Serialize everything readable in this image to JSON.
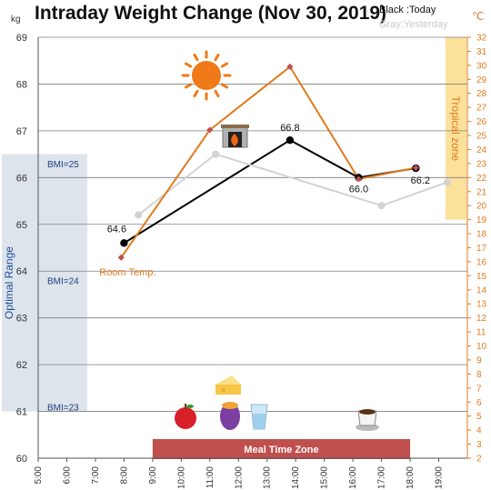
{
  "chart_data": {
    "type": "line",
    "title": "Intraday Weight Change (Nov 30, 2019)",
    "legend": {
      "today": "Black :Today",
      "yesterday": "Gray:Yesterday"
    },
    "y_unit": "kg",
    "y2_unit": "℃",
    "ylim": [
      60,
      69
    ],
    "y2lim": [
      2,
      32
    ],
    "y_ticks": [
      "60",
      "61",
      "62",
      "63",
      "64",
      "65",
      "66",
      "67",
      "68",
      "69"
    ],
    "y2_ticks": [
      "2",
      "3",
      "4",
      "5",
      "6",
      "7",
      "8",
      "9",
      "10",
      "11",
      "12",
      "13",
      "14",
      "15",
      "16",
      "17",
      "18",
      "19",
      "20",
      "21",
      "22",
      "23",
      "24",
      "25",
      "26",
      "27",
      "28",
      "29",
      "30",
      "31",
      "32"
    ],
    "x_ticks": [
      "5:00",
      "6:00",
      "7:00",
      "8:00",
      "9:00",
      "10:00",
      "11:00",
      "12:00",
      "13:00",
      "14:00",
      "15:00",
      "16:00",
      "17:00",
      "18:00",
      "19:00"
    ],
    "grid": true,
    "series": [
      {
        "name": "Black :Today",
        "color": "#000000",
        "x": [
          8.0,
          13.8,
          16.2,
          18.2
        ],
        "y": [
          64.6,
          66.8,
          66.0,
          66.2
        ],
        "labels": [
          "64.6",
          "66.8",
          "66.0",
          "66.2"
        ]
      },
      {
        "name": "Gray:Yesterday",
        "color": "#d3d3d3",
        "x": [
          8.5,
          11.2,
          17.0,
          19.3
        ],
        "y": [
          65.2,
          66.5,
          65.4,
          65.9
        ]
      },
      {
        "name": "Room Temp.",
        "color": "#e07b20",
        "axis": "right",
        "x": [
          7.9,
          11.0,
          13.8,
          16.2,
          18.2
        ],
        "y": [
          16.3,
          25.4,
          29.9,
          21.9,
          22.7
        ]
      }
    ],
    "bands": {
      "optimal": {
        "label": "Optimal Range",
        "ymin": 61,
        "ymax": 66.5,
        "color": "#dde4ec"
      },
      "tropical": {
        "label": "Tropical zone",
        "y2min": 19,
        "y2max": 32,
        "color": "#fbe19a"
      },
      "meal": {
        "label": "Meal Time Zone",
        "xmin": 9.0,
        "xmax": 18.0,
        "color": "#c0504d"
      }
    },
    "bmi_labels": [
      {
        "text": "BMI=25",
        "y": 66.3
      },
      {
        "text": "BMI=24",
        "y": 63.8
      },
      {
        "text": "BMI=23",
        "y": 61.1
      }
    ],
    "annotation": {
      "text": "Room Temp.",
      "x": 7.9,
      "y": 64.0
    },
    "icons": {
      "sun": {
        "name": "sun-icon",
        "color": "#f07a18"
      },
      "fireplace": {
        "name": "fireplace-icon"
      },
      "apple": {
        "name": "apple-icon"
      },
      "sweet_potato": {
        "name": "sweet-potato-icon"
      },
      "cheese": {
        "name": "cheese-icon"
      },
      "water": {
        "name": "water-glass-icon"
      },
      "coffee": {
        "name": "coffee-icon"
      }
    }
  }
}
